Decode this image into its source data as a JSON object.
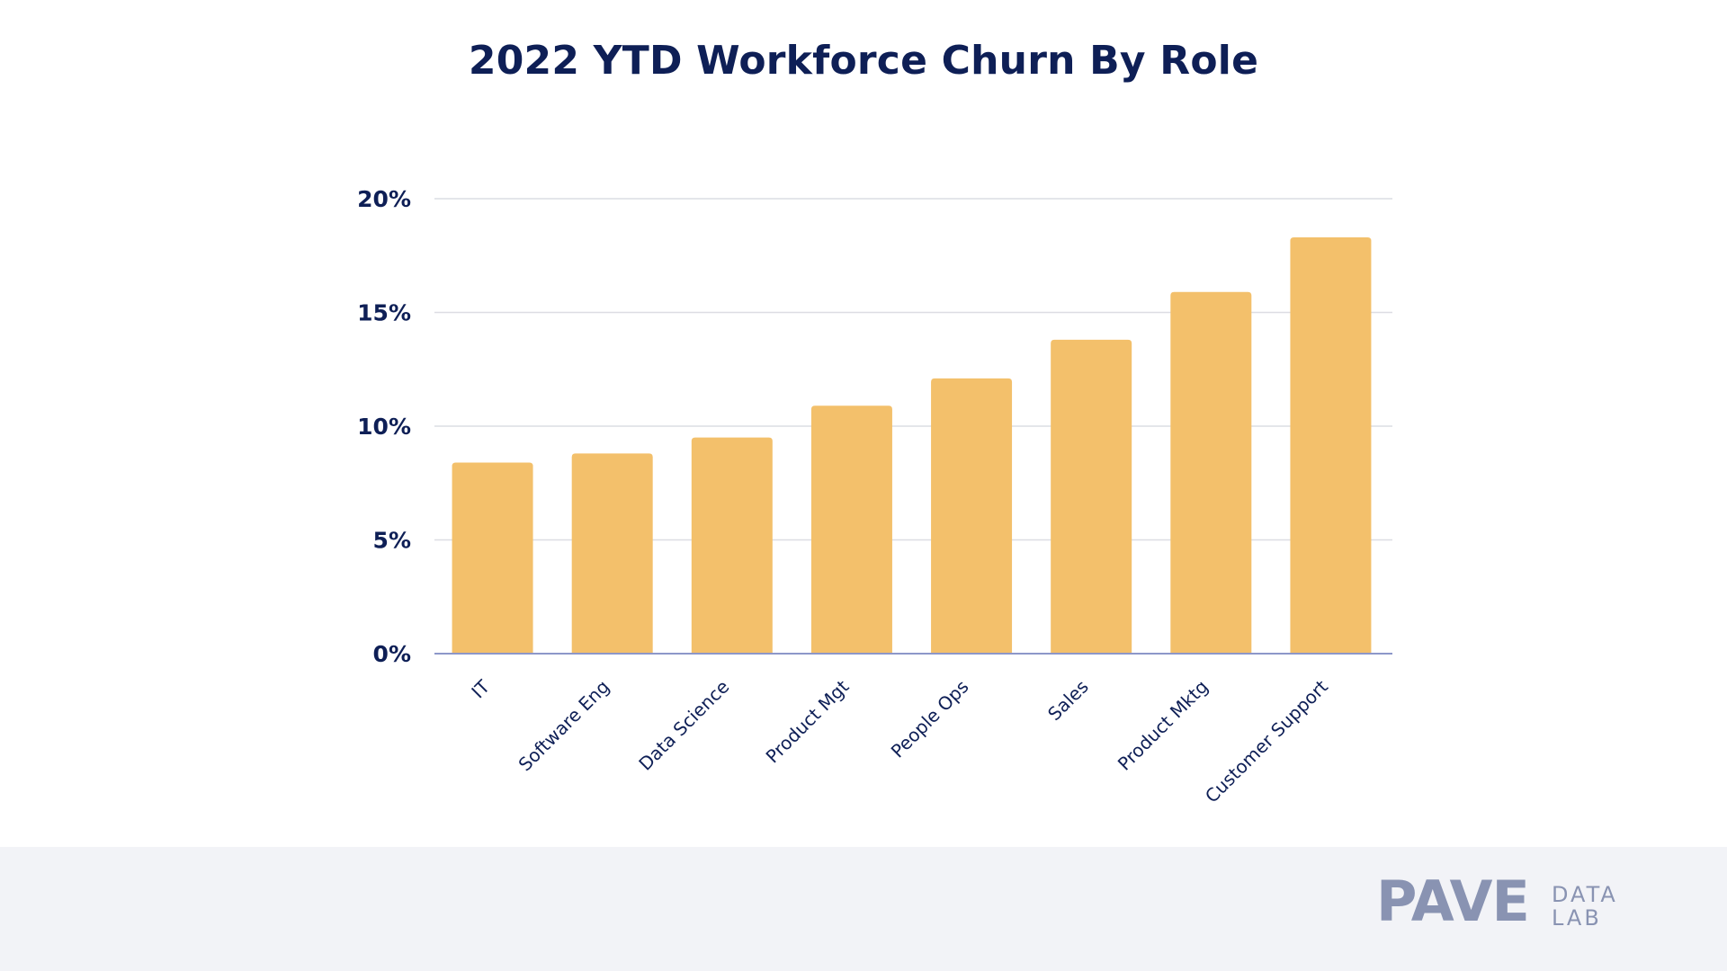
{
  "chart_data": {
    "type": "bar",
    "title": "2022 YTD Workforce Churn By Role",
    "xlabel": "",
    "ylabel": "",
    "categories": [
      "IT",
      "Software Eng",
      "Data Science",
      "Product Mgt",
      "People Ops",
      "Sales",
      "Product Mktg",
      "Customer Support"
    ],
    "values": [
      8.4,
      8.8,
      9.5,
      10.9,
      12.1,
      13.8,
      15.9,
      18.3
    ],
    "ylim": [
      0,
      20
    ],
    "yticks": [
      0,
      5,
      10,
      15,
      20
    ],
    "ytick_labels": [
      "0%",
      "5%",
      "10%",
      "15%",
      "20%"
    ],
    "grid": true,
    "legend": "none",
    "colors": {
      "bar": "#f3c06b",
      "grid": "#dcdde3",
      "baseline": "#8d97c9",
      "text": "#0e1f56"
    }
  },
  "footer": {
    "logo_main": "PAVE",
    "logo_sub_1": "DATA",
    "logo_sub_2": "LAB"
  }
}
